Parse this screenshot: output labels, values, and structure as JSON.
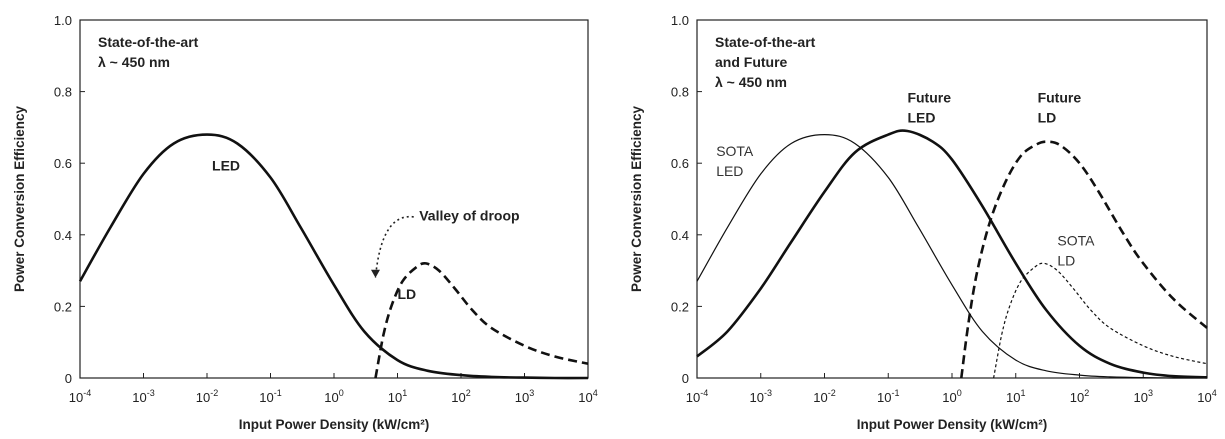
{
  "chart_data": [
    {
      "type": "line",
      "xscale": "log",
      "xlim": [
        0.0001,
        10000
      ],
      "ylim": [
        0,
        1.0
      ],
      "yticks": [
        "0",
        "0.2",
        "0.4",
        "0.6",
        "0.8",
        "1.0"
      ],
      "xticks": [
        {
          "base": "10",
          "exp": "-4"
        },
        {
          "base": "10",
          "exp": "-3"
        },
        {
          "base": "10",
          "exp": "-2"
        },
        {
          "base": "10",
          "exp": "-1"
        },
        {
          "base": "10",
          "exp": "0"
        },
        {
          "base": "10",
          "exp": "1"
        },
        {
          "base": "10",
          "exp": "2"
        },
        {
          "base": "10",
          "exp": "3"
        },
        {
          "base": "10",
          "exp": "4"
        }
      ],
      "xlabel": "Input Power Density (kW/cm²)",
      "ylabel": "Power Conversion Efficiency",
      "grid": false,
      "legend": "none",
      "box_text": [
        "State-of-the-art",
        "λ ~ 450 nm"
      ],
      "series": [
        {
          "style": "solid-thick",
          "x": [
            0.0001,
            0.0003,
            0.001,
            0.003,
            0.01,
            0.03,
            0.1,
            0.3,
            1,
            3,
            10,
            30,
            100,
            300,
            1000,
            3000,
            10000
          ],
          "y": [
            0.27,
            0.42,
            0.57,
            0.655,
            0.68,
            0.655,
            0.56,
            0.42,
            0.26,
            0.13,
            0.05,
            0.02,
            0.008,
            0.003,
            0.001,
            0.0,
            0.0
          ]
        },
        {
          "style": "dashed-thick",
          "x": [
            4.5,
            6,
            8,
            12,
            20,
            28,
            45,
            80,
            150,
            300,
            1000,
            3000,
            10000
          ],
          "y": [
            0.0,
            0.12,
            0.2,
            0.27,
            0.31,
            0.32,
            0.3,
            0.25,
            0.19,
            0.14,
            0.09,
            0.06,
            0.04
          ]
        }
      ],
      "annotations": [
        {
          "lines": [
            "LED"
          ],
          "x": 0.012,
          "y": 0.58,
          "weight": "bold"
        },
        {
          "lines": [
            "Valley of droop"
          ],
          "x": 22,
          "y": 0.44,
          "weight": "bold"
        },
        {
          "lines": [
            "LD"
          ],
          "x": 10,
          "y": 0.22,
          "weight": "bold"
        }
      ],
      "arrow": {
        "from": [
          18,
          0.45
        ],
        "to": [
          4.5,
          0.28
        ]
      }
    },
    {
      "type": "line",
      "xscale": "log",
      "xlim": [
        0.0001,
        10000
      ],
      "ylim": [
        0,
        1.0
      ],
      "yticks": [
        "0",
        "0.2",
        "0.4",
        "0.6",
        "0.8",
        "1.0"
      ],
      "xticks": [
        {
          "base": "10",
          "exp": "-4"
        },
        {
          "base": "10",
          "exp": "-3"
        },
        {
          "base": "10",
          "exp": "-2"
        },
        {
          "base": "10",
          "exp": "-1"
        },
        {
          "base": "10",
          "exp": "0"
        },
        {
          "base": "10",
          "exp": "1"
        },
        {
          "base": "10",
          "exp": "2"
        },
        {
          "base": "10",
          "exp": "3"
        },
        {
          "base": "10",
          "exp": "4"
        }
      ],
      "xlabel": "Input Power Density (kW/cm²)",
      "ylabel": "Power Conversion Efficiency",
      "grid": false,
      "legend": "none",
      "box_text": [
        "State-of-the-art",
        "and Future",
        "λ ~ 450 nm"
      ],
      "series": [
        {
          "style": "solid-thin",
          "x": [
            0.0001,
            0.0003,
            0.001,
            0.003,
            0.01,
            0.03,
            0.1,
            0.3,
            1,
            3,
            10,
            30,
            100,
            300,
            1000,
            3000,
            10000
          ],
          "y": [
            0.27,
            0.42,
            0.57,
            0.655,
            0.68,
            0.655,
            0.56,
            0.42,
            0.26,
            0.13,
            0.05,
            0.02,
            0.008,
            0.003,
            0.001,
            0.0,
            0.0
          ]
        },
        {
          "style": "solid-thick",
          "x": [
            0.0001,
            0.0003,
            0.001,
            0.003,
            0.01,
            0.03,
            0.1,
            0.2,
            0.5,
            1,
            3,
            10,
            30,
            100,
            300,
            1000,
            3000,
            10000
          ],
          "y": [
            0.06,
            0.13,
            0.25,
            0.38,
            0.52,
            0.63,
            0.68,
            0.69,
            0.66,
            0.61,
            0.48,
            0.32,
            0.19,
            0.09,
            0.04,
            0.015,
            0.005,
            0.002
          ]
        },
        {
          "style": "dashed-thick",
          "x": [
            1.4,
            1.8,
            2.5,
            4,
            7,
            12,
            20,
            30,
            50,
            100,
            200,
            500,
            1000,
            3000,
            10000
          ],
          "y": [
            0.0,
            0.15,
            0.3,
            0.44,
            0.55,
            0.62,
            0.65,
            0.66,
            0.65,
            0.6,
            0.52,
            0.4,
            0.32,
            0.22,
            0.14
          ]
        },
        {
          "style": "dotted-thin",
          "x": [
            4.5,
            6,
            8,
            12,
            20,
            28,
            45,
            80,
            150,
            300,
            1000,
            3000,
            10000
          ],
          "y": [
            0.0,
            0.12,
            0.2,
            0.27,
            0.31,
            0.32,
            0.3,
            0.25,
            0.19,
            0.14,
            0.09,
            0.06,
            0.04
          ]
        }
      ],
      "annotations": [
        {
          "lines": [
            "SOTA",
            "LED"
          ],
          "x": 0.0002,
          "y": 0.62,
          "weight": "normal"
        },
        {
          "lines": [
            "Future",
            "LED"
          ],
          "x": 0.2,
          "y": 0.77,
          "weight": "bold"
        },
        {
          "lines": [
            "Future",
            "LD"
          ],
          "x": 22,
          "y": 0.77,
          "weight": "bold"
        },
        {
          "lines": [
            "SOTA",
            "LD"
          ],
          "x": 45,
          "y": 0.37,
          "weight": "normal"
        }
      ]
    }
  ]
}
